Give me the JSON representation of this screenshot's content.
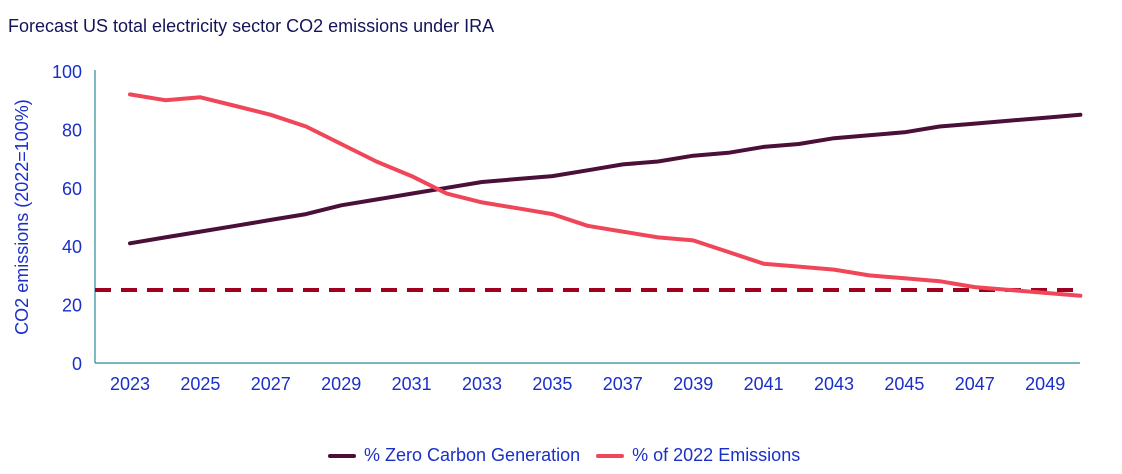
{
  "title": "Forecast US total electricity sector CO2 emissions under IRA",
  "chart_data": {
    "type": "line",
    "title": "Forecast US total electricity sector CO2 emissions under IRA",
    "xlabel": "",
    "ylabel": "CO2 emissions (2022=100%)",
    "ylim": [
      0,
      100
    ],
    "yticks": [
      0,
      20,
      40,
      60,
      80,
      100
    ],
    "xticks": [
      2023,
      2025,
      2027,
      2029,
      2031,
      2033,
      2035,
      2037,
      2039,
      2041,
      2043,
      2045,
      2047,
      2049
    ],
    "xlim": [
      2022,
      2050
    ],
    "grid": false,
    "legend_position": "bottom-center",
    "x": [
      2023,
      2024,
      2025,
      2026,
      2027,
      2028,
      2029,
      2030,
      2031,
      2032,
      2033,
      2034,
      2035,
      2036,
      2037,
      2038,
      2039,
      2040,
      2041,
      2042,
      2043,
      2044,
      2045,
      2046,
      2047,
      2048,
      2049,
      2050
    ],
    "series": [
      {
        "name": "% Zero Carbon Generation",
        "color": "#4a1038",
        "values": [
          41,
          43,
          45,
          47,
          49,
          51,
          54,
          56,
          58,
          60,
          62,
          63,
          64,
          66,
          68,
          69,
          71,
          72,
          74,
          75,
          77,
          78,
          79,
          81,
          82,
          83,
          84,
          85
        ]
      },
      {
        "name": "% of 2022 Emissions",
        "color": "#f0465a",
        "values": [
          92,
          90,
          91,
          88,
          85,
          81,
          75,
          69,
          64,
          58,
          55,
          53,
          51,
          47,
          45,
          43,
          42,
          38,
          34,
          33,
          32,
          30,
          29,
          28,
          26,
          25,
          24,
          23
        ]
      }
    ],
    "reference_lines": [
      {
        "name": "target-25",
        "value": 25,
        "style": "dashed",
        "color": "#a0001e"
      }
    ]
  },
  "colors": {
    "axis": "#2a8c9a",
    "text": "#1a2fc8",
    "title": "#14145a"
  }
}
